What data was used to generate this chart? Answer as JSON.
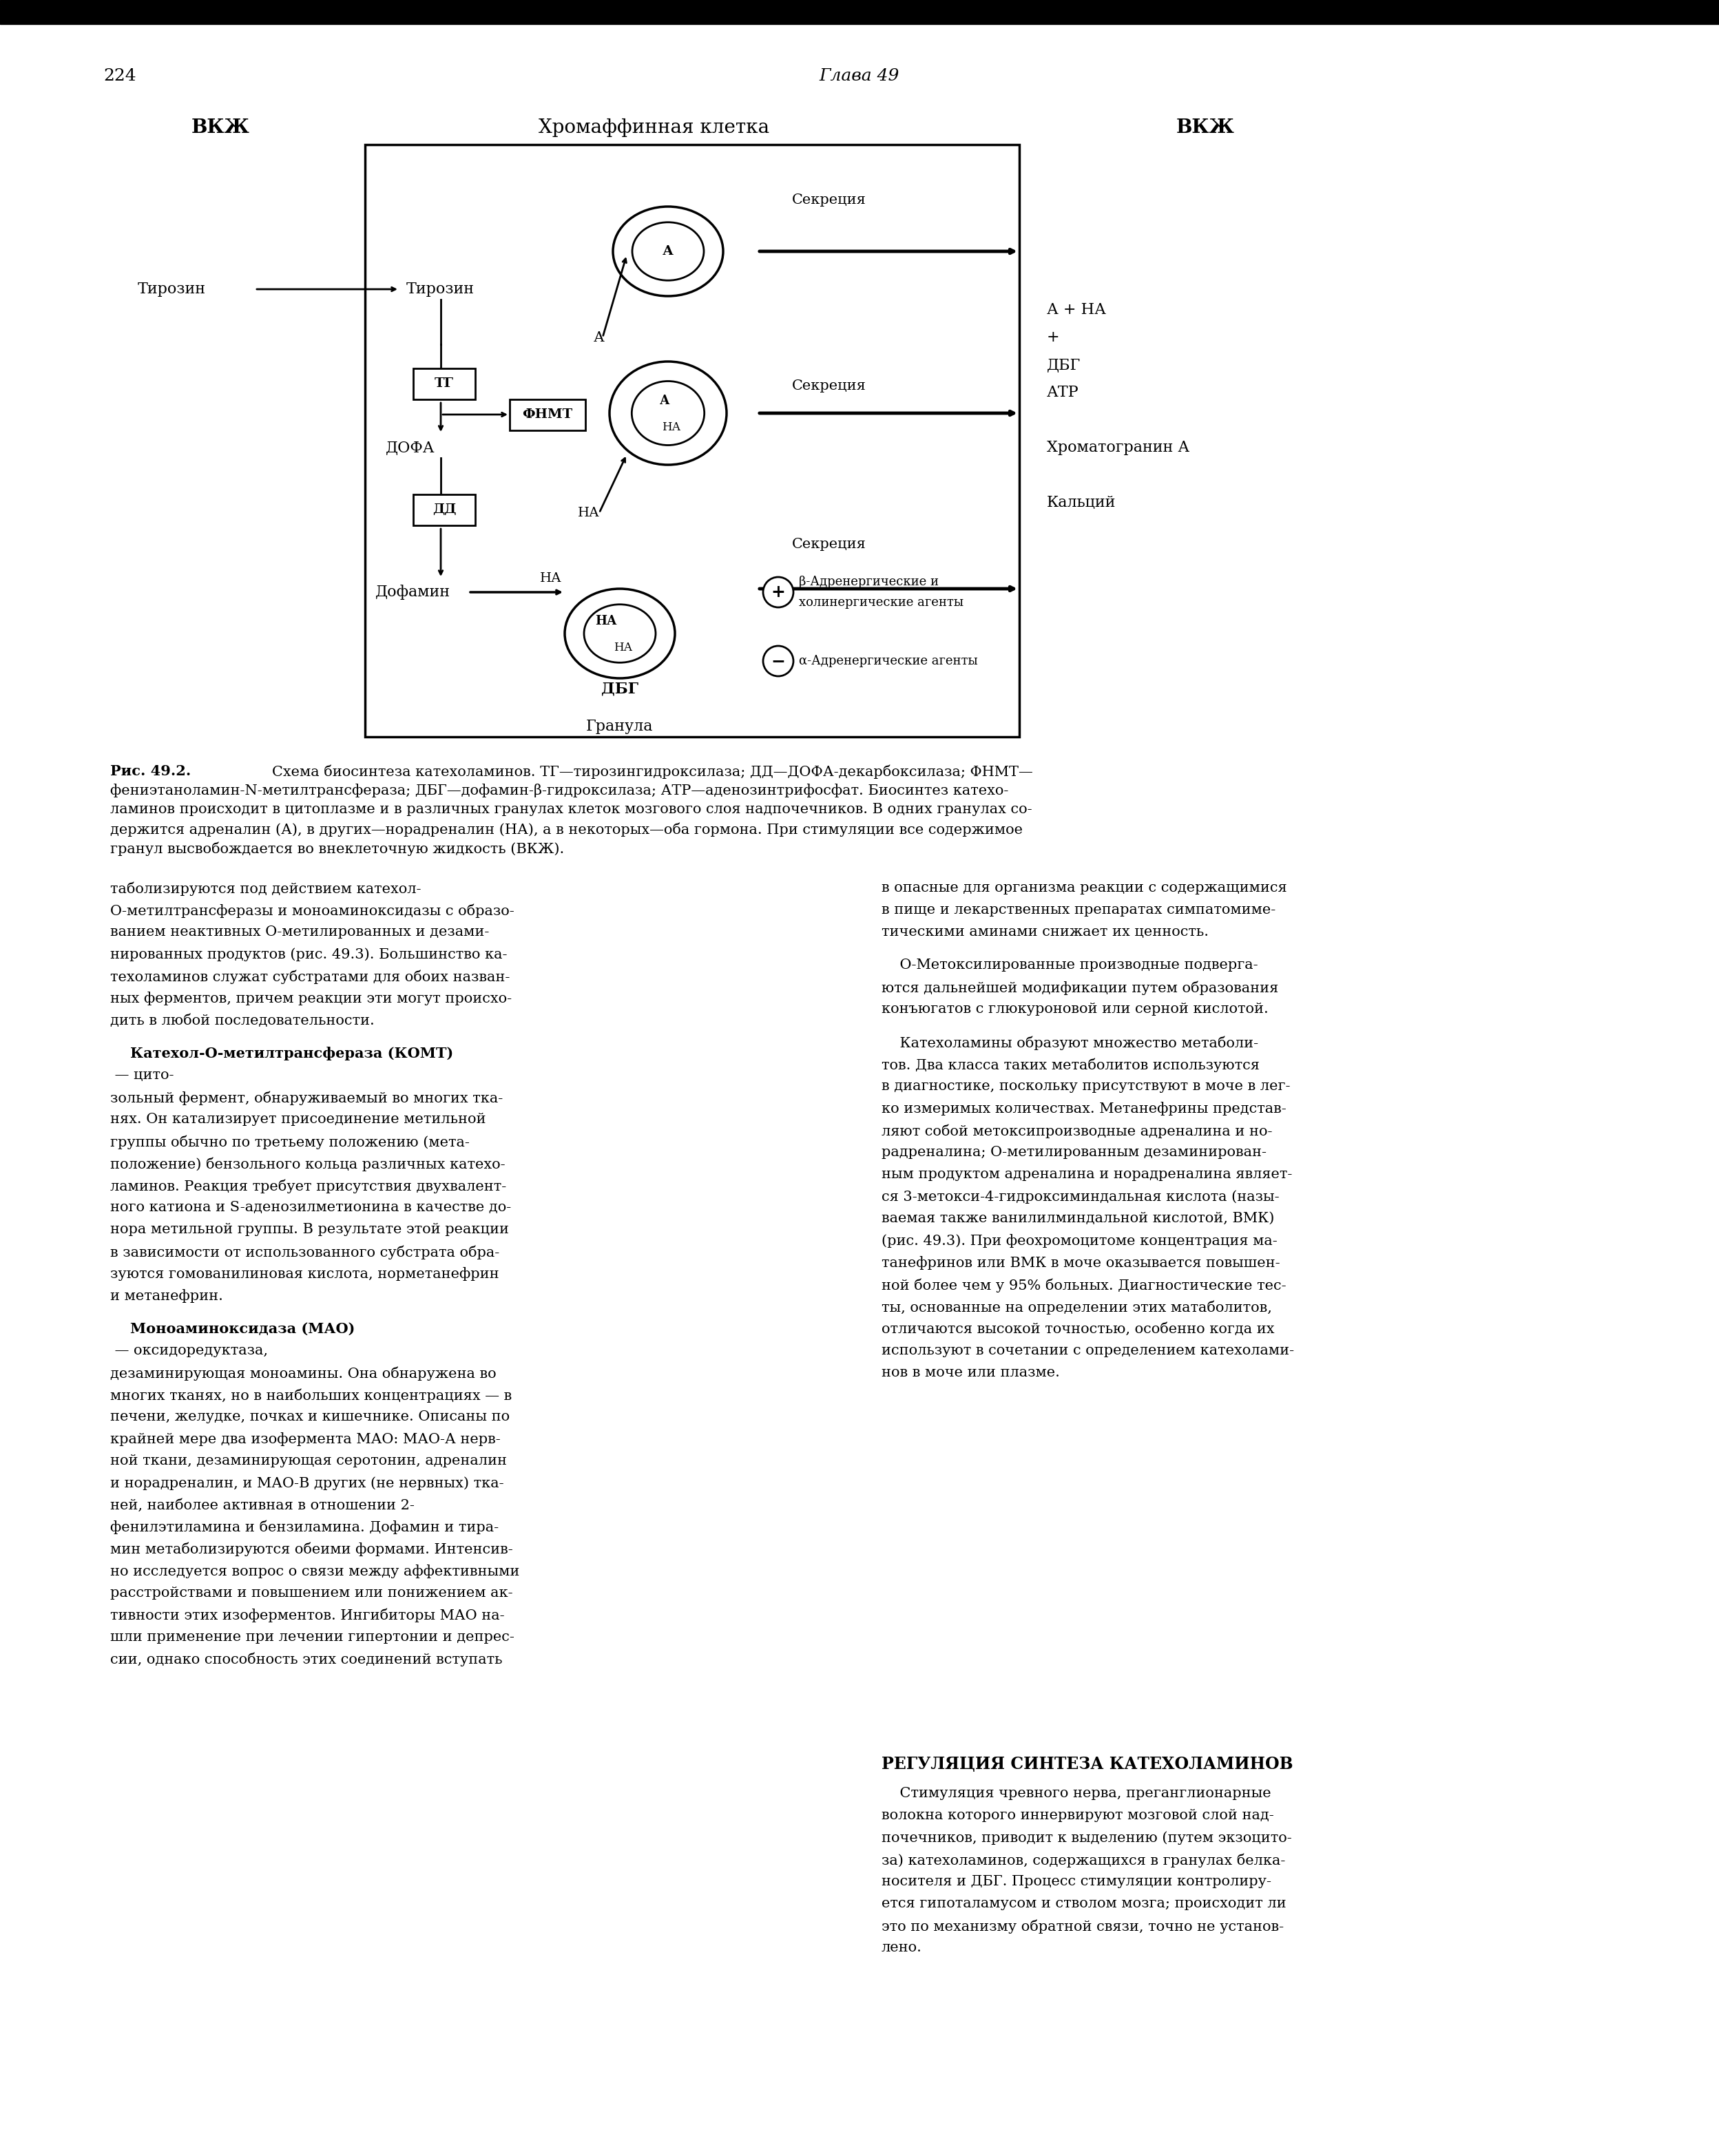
{
  "page_number": "224",
  "chapter": "Глава 49",
  "left_label": "ВКЖ",
  "center_label": "Хромаффинная клетка",
  "right_label": "ВКЖ",
  "caption_bold": "Рис. 49.2.",
  "caption_text": " Схема биосинтеза катехоламинов. ТГ—тирозингидроксилаза; ДД—ДОФА-декарбоксилаза; ΦNMT—фениэтаноламин-N-метилтрансфераза; ДБГ—дофамин-β-гидроксилаза; АТР—аденозинтрифосфат. Биосинтез катехоламинов происходит в цитоплазме и в различных гранулах клеток мозгового слоя надпочечников. В одних гранулах содержится адреналин (А), в других—норадреналин (НА), а в некоторых—оба гормона. При стимуляции все содержимое гранул высвобождается во внеклеточную жидкость (ВКЖ).",
  "body_text_col1": "таболизируются под действием катехол-О-метилтрансферазы и моноаминоксидазы с образованием неактивных О-метилированных и дезаминированных продуктов (рис. 49.3). Большинство катехоламинов служат субстратами для обоих названных ферментов, причем реакции эти могут происходить в любой последовательности.\n\n    Катехол-О-метилтрансфераза (КОМТ) — цитозольный фермент, обнаруживаемый во многих тканях. Он катализирует присоединение метильной группы обычно по третьему положению (метаположение) бензольного кольца различных катехоламинов. Реакция требует присутствия двухвалентного катиона и S-аденозилметионина в качестве донора метильной группы. В результате этой реакции в зависимости от использованного субстрата образуются гомованилиновая кислота, норметанефрин и метанефрин.\n\n    Моноаминоксидаза (МАО) — оксидоредуктаза, дезаминирующая моноамины. Она обнаружена во многих тканях, но в наибольших концентрациях — в печени, желудке, почках и кишечнике. Описаны по крайней мере два изофермента МАО: МАО-А нервной ткани, дезаминирующая серотонин, адреналин и норадреналин, и МАО-В других (не нервных) тканей, наиболее активная в отношении 2-фенилэтиламина и бензиламина. Дофамин и тирамин метаболизируются обеими формами. Интенсивно исследуется вопрос о связи между аффективными расстройствами и повышением или понижением активности этих изоферментов. Ингибиторы МАО нашли применение при лечении гипертонии и депрессии, однако способность этих соединений вступать",
  "body_text_col2": "в опасные для организма реакции с содержащимися в пище и лекарственных препаратах симпатомиметическими аминами снижает их ценность.\n\n    О-Метоксилированные производные подвергаются дальнейшей модификации путем образования конъюгатов с глюкуроновой или серной кислотой.\n\n    Катехоламины образуют множество метаболитов. Два класса таких метаболитов используются в диагностике, поскольку присутствуют в моче в легко измеримых количествах. Метанефрины представляют собой метоксипроизводные адреналина и норадреналина; О-метилированным дезаминированным продуктом адреналина и норадреналина является 3-метокси-4-гидроксиминдальная кислота (называемая также ванилилминдальной кислотой, ВМК) (рис. 49.3). При феохромоцитоме концентрация метанефринов или ВМК в моче оказывается повышенной более чем у 95% больных. Диагностические тесты, основанные на определении этих матаболитов, отличаются высокой точностью, особенно когда их используют в сочетании с определением катехоламинов в моче или плазме.",
  "section_title": "РЕГУЛЯЦИЯ СИНТЕЗА КАТЕХОЛАМИНОВ",
  "section_text": "Стимуляция чревного нерва, преганглионарные волокна которого иннервируют мозговой слой надпочечников, приводит к выделению (путем экзоцитоза) катехоламинов, содержащихся в гранулах белканосителя и ДБГ. Процесс стимуляции контролируется гипоталамусом и стволом мозга; происходит ли это по механизму обратной связи, точно не установлено.",
  "bg_color": "#ffffff",
  "text_color": "#000000",
  "box_color": "#000000"
}
